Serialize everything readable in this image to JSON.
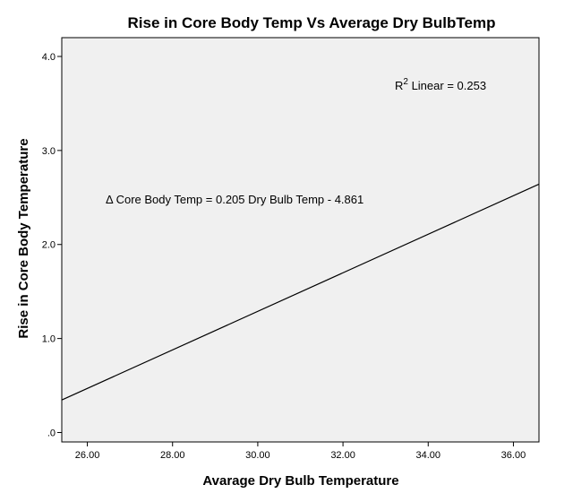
{
  "chart_data": {
    "type": "line",
    "title": "Rise in Core Body Temp Vs Average Dry BulbTemp",
    "xlabel": "Avarage Dry Bulb Temperature",
    "ylabel": "Rise in Core Body Temperature",
    "xlim": [
      25.4,
      36.6
    ],
    "ylim": [
      -0.1,
      4.2
    ],
    "x_ticks": [
      26,
      28,
      30,
      32,
      34,
      36
    ],
    "x_tick_labels": [
      "26.00",
      "28.00",
      "30.00",
      "32.00",
      "34.00",
      "36.00"
    ],
    "y_ticks": [
      0,
      1,
      2,
      3,
      4
    ],
    "y_tick_labels": [
      ".0",
      "1.0",
      "2.0",
      "3.0",
      "4.0"
    ],
    "series": [
      {
        "name": "Linear fit",
        "x": [
          25.4,
          36.6
        ],
        "y": [
          0.346,
          2.642
        ]
      }
    ],
    "annotations": {
      "r2_prefix": "R",
      "r2_sup": "2",
      "r2_suffix": " Linear = 0.253",
      "equation": "Δ Core Body Temp = 0.205 Dry Bulb Temp - 4.861"
    },
    "colors": {
      "plot_background": "#f0f0f0",
      "line": "#000000"
    }
  }
}
